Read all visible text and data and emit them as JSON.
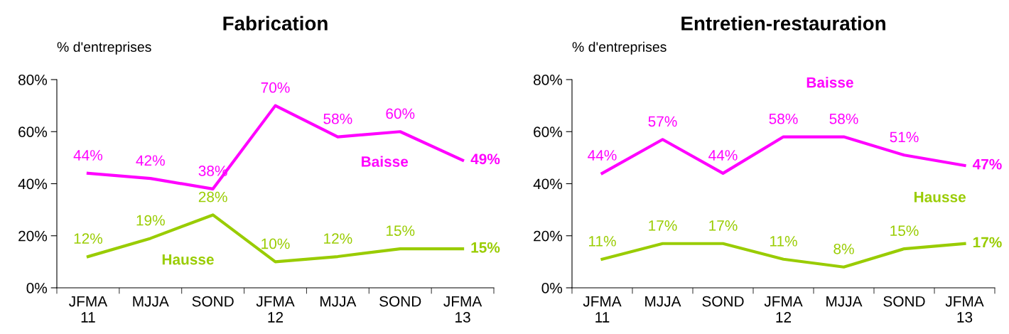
{
  "chart_data": [
    {
      "type": "line",
      "title": "Fabrication",
      "ylabel": "% d'entreprises",
      "categories": [
        "JFMA\n11",
        "MJJA",
        "SOND",
        "JFMA\n12",
        "MJJA",
        "SOND",
        "JFMA\n13"
      ],
      "ylim": [
        0,
        80
      ],
      "yticks": [
        {
          "value": 0,
          "label": "0%"
        },
        {
          "value": 20,
          "label": "20%"
        },
        {
          "value": 40,
          "label": "40%"
        },
        {
          "value": 60,
          "label": "60%"
        },
        {
          "value": 80,
          "label": "80%"
        }
      ],
      "grid": false,
      "legend": false,
      "marker": "none",
      "line_style": "solid",
      "series": [
        {
          "name": "Baisse",
          "color": "#ff00ff",
          "values": [
            44,
            42,
            38,
            70,
            58,
            60,
            49
          ],
          "value_labels": [
            "44%",
            "42%",
            "38%",
            "70%",
            "58%",
            "60%",
            "49%"
          ]
        },
        {
          "name": "Hausse",
          "color": "#99cc00",
          "values": [
            12,
            19,
            28,
            10,
            12,
            15,
            15
          ],
          "value_labels": [
            "12%",
            "19%",
            "28%",
            "10%",
            "12%",
            "15%",
            "15%"
          ]
        }
      ]
    },
    {
      "type": "line",
      "title": "Entretien-restauration",
      "ylabel": "% d'entreprises",
      "categories": [
        "JFMA\n11",
        "MJJA",
        "SOND",
        "JFMA\n12",
        "MJJA",
        "SOND",
        "JFMA\n13"
      ],
      "ylim": [
        0,
        80
      ],
      "yticks": [
        {
          "value": 0,
          "label": "0%"
        },
        {
          "value": 20,
          "label": "20%"
        },
        {
          "value": 40,
          "label": "40%"
        },
        {
          "value": 60,
          "label": "60%"
        },
        {
          "value": 80,
          "label": "80%"
        }
      ],
      "grid": false,
      "legend": false,
      "marker": "none",
      "line_style": "solid",
      "series": [
        {
          "name": "Baisse",
          "color": "#ff00ff",
          "values": [
            44,
            57,
            44,
            58,
            58,
            51,
            47
          ],
          "value_labels": [
            "44%",
            "57%",
            "44%",
            "58%",
            "58%",
            "51%",
            "47%"
          ]
        },
        {
          "name": "Hausse",
          "color": "#99cc00",
          "values": [
            11,
            17,
            17,
            11,
            8,
            15,
            17
          ],
          "value_labels": [
            "11%",
            "17%",
            "17%",
            "11%",
            "8%",
            "15%",
            "17%"
          ]
        }
      ]
    }
  ]
}
